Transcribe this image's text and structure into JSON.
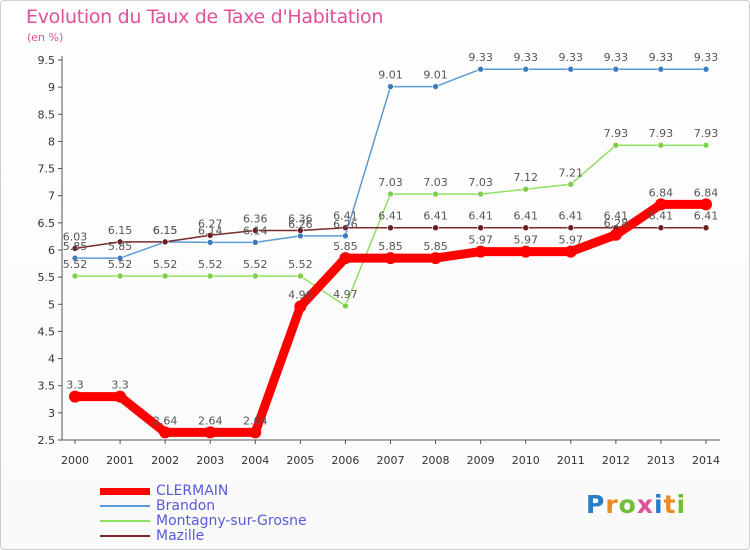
{
  "header": {
    "title": "Evolution du Taux de Taxe d'Habitation",
    "unit": "(en %)"
  },
  "chart_data": {
    "type": "line",
    "title": "Evolution du Taux de Taxe d'Habitation",
    "ylabel": "(en %)",
    "xlabel": "",
    "categories": [
      "2000",
      "2001",
      "2002",
      "2003",
      "2004",
      "2005",
      "2006",
      "2007",
      "2008",
      "2009",
      "2010",
      "2011",
      "2012",
      "2013",
      "2014"
    ],
    "ylim": [
      2.5,
      9.5
    ],
    "yticks": [
      2.5,
      3,
      3.5,
      4,
      4.5,
      5,
      5.5,
      6,
      6.5,
      7,
      7.5,
      8,
      8.5,
      9,
      9.5
    ],
    "grid": false,
    "legend_position": "bottom-left",
    "series": [
      {
        "name": "CLERMAIN",
        "color": "#ff0000",
        "values": [
          3.3,
          3.3,
          2.64,
          2.64,
          2.64,
          4.96,
          5.85,
          5.85,
          5.85,
          5.97,
          5.97,
          5.97,
          6.28,
          6.84,
          6.84
        ],
        "labels": [
          "3.3",
          "3.3",
          "2.64",
          "2.64",
          "2.64",
          "4.96",
          "5.85",
          "5.85",
          "5.85",
          "5.97",
          "5.97",
          "5.97",
          "6.28",
          "6.84",
          "6.84"
        ]
      },
      {
        "name": "Brandon",
        "color": "#5a9bd5",
        "marker_color": "#3a7cc0",
        "values": [
          5.85,
          5.85,
          6.15,
          6.14,
          6.14,
          6.26,
          6.26,
          9.01,
          9.01,
          9.33,
          9.33,
          9.33,
          9.33,
          9.33,
          9.33
        ],
        "labels": [
          "5.85",
          "5.85",
          "6.15",
          "6.14",
          "6.14",
          "6.26",
          "6.26",
          "9.01",
          "9.01",
          "9.33",
          "9.33",
          "9.33",
          "9.33",
          "9.33",
          "9.33"
        ]
      },
      {
        "name": "Montagny-sur-Grosne",
        "color": "#90e060",
        "marker_color": "#7ed04a",
        "values": [
          5.52,
          5.52,
          5.52,
          5.52,
          5.52,
          5.52,
          4.97,
          7.03,
          7.03,
          7.03,
          7.12,
          7.21,
          7.93,
          7.93,
          7.93
        ],
        "labels": [
          "5.52",
          "5.52",
          "5.52",
          "5.52",
          "5.52",
          "5.52",
          "4.97",
          "7.03",
          "7.03",
          "7.03",
          "7.12",
          "7.21",
          "7.93",
          "7.93",
          "7.93"
        ]
      },
      {
        "name": "Mazille",
        "color": "#7a2a2a",
        "marker_color": "#6a1e1e",
        "values": [
          6.03,
          6.15,
          6.15,
          6.27,
          6.36,
          6.36,
          6.41,
          6.41,
          6.41,
          6.41,
          6.41,
          6.41,
          6.41,
          6.41,
          6.41
        ],
        "labels": [
          "6.03",
          "6.15",
          "6.15",
          "6.27",
          "6.36",
          "6.36",
          "6.41",
          "6.41",
          "6.41",
          "6.41",
          "6.41",
          "6.41",
          "6.41",
          "6.41",
          "6.41"
        ]
      }
    ]
  },
  "legend": {
    "items": [
      {
        "label": "CLERMAIN",
        "color": "#ff0000"
      },
      {
        "label": "Brandon",
        "color": "#5a9bd5"
      },
      {
        "label": "Montagny-sur-Grosne",
        "color": "#90e060"
      },
      {
        "label": "Mazille",
        "color": "#7a2a2a"
      }
    ]
  },
  "logo": {
    "text": "Proxiti",
    "colors": [
      "#2a7cc7",
      "#f08a24",
      "#6fbf3a",
      "#e0509a",
      "#2a7cc7",
      "#f08a24",
      "#6fbf3a"
    ]
  }
}
